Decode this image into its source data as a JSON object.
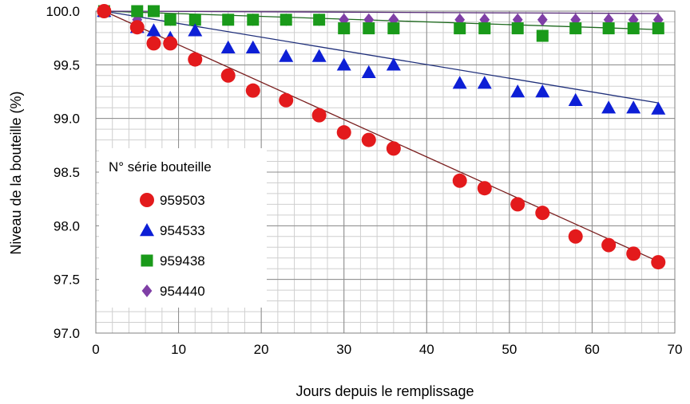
{
  "chart_data": {
    "type": "scatter",
    "xlabel": "Jours depuis le remplissage",
    "ylabel": "Niveau de la bouteille (%)",
    "xlim": [
      0,
      70
    ],
    "ylim": [
      97.0,
      100.0
    ],
    "x_ticks": [
      "0",
      "10",
      "20",
      "30",
      "40",
      "50",
      "60",
      "70"
    ],
    "y_ticks": [
      "97.0",
      "97.5",
      "98.0",
      "98.5",
      "99.0",
      "99.5",
      "100.0"
    ],
    "grid": true,
    "legend": {
      "title": "N° série bouteille",
      "placement": "left-center"
    },
    "series": [
      {
        "name": "959503",
        "marker": "circle",
        "color": "#e31a1c",
        "line_color": "#7a1f1f",
        "x": [
          1,
          5,
          7,
          9,
          12,
          16,
          19,
          23,
          27,
          30,
          33,
          36,
          44,
          47,
          51,
          54,
          58,
          62,
          65,
          68
        ],
        "y": [
          100.0,
          99.85,
          99.7,
          99.7,
          99.55,
          99.4,
          99.26,
          99.17,
          99.03,
          98.87,
          98.8,
          98.72,
          98.42,
          98.35,
          98.2,
          98.12,
          97.9,
          97.82,
          97.74,
          97.66
        ]
      },
      {
        "name": "954533",
        "marker": "triangle",
        "color": "#0d1fd6",
        "line_color": "#1f2f7a",
        "x": [
          1,
          5,
          7,
          9,
          12,
          16,
          19,
          23,
          27,
          30,
          33,
          36,
          44,
          47,
          51,
          54,
          58,
          62,
          65,
          68
        ],
        "y": [
          100.0,
          99.85,
          99.82,
          99.75,
          99.82,
          99.66,
          99.66,
          99.58,
          99.58,
          99.5,
          99.43,
          99.5,
          99.33,
          99.33,
          99.25,
          99.25,
          99.17,
          99.1,
          99.1,
          99.09
        ]
      },
      {
        "name": "959438",
        "marker": "square",
        "color": "#1a9a1a",
        "line_color": "#1f6a1f",
        "x": [
          1,
          5,
          7,
          9,
          12,
          16,
          19,
          23,
          27,
          30,
          33,
          36,
          44,
          47,
          51,
          54,
          58,
          62,
          65,
          68
        ],
        "y": [
          100.0,
          100.0,
          100.0,
          99.92,
          99.92,
          99.92,
          99.92,
          99.92,
          99.92,
          99.84,
          99.84,
          99.84,
          99.84,
          99.84,
          99.84,
          99.77,
          99.84,
          99.84,
          99.84,
          99.84
        ]
      },
      {
        "name": "954440",
        "marker": "diamond",
        "color": "#7f3fa6",
        "line_color": "#5a2f7a",
        "x": [
          1,
          5,
          9,
          12,
          16,
          19,
          23,
          27,
          30,
          33,
          36,
          44,
          47,
          51,
          54,
          58,
          62,
          65,
          68
        ],
        "y": [
          100.0,
          99.92,
          99.92,
          99.92,
          99.92,
          99.92,
          99.92,
          99.92,
          99.92,
          99.92,
          99.92,
          99.92,
          99.92,
          99.92,
          99.92,
          99.92,
          99.92,
          99.92,
          99.92
        ]
      }
    ]
  }
}
